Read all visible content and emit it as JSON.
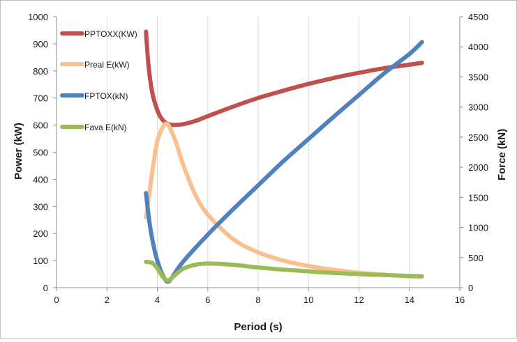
{
  "chart_data": {
    "type": "line",
    "title": "",
    "xlabel": "Period (s)",
    "ylabel": "Power (kW)",
    "y2label": "Force (kN)",
    "xlim": [
      0,
      16
    ],
    "ylim": [
      0,
      1000
    ],
    "y2lim": [
      0,
      4500
    ],
    "xticks": [
      0,
      2,
      4,
      6,
      8,
      10,
      12,
      14,
      16
    ],
    "yticks": [
      0,
      100,
      200,
      300,
      400,
      500,
      600,
      700,
      800,
      900,
      1000
    ],
    "y2ticks": [
      0,
      500,
      1000,
      1500,
      2000,
      2500,
      3000,
      3500,
      4000,
      4500
    ],
    "grid": "vertical",
    "legend_position": "top-left",
    "series": [
      {
        "name": "PPTOXX(KW)",
        "axis": "left",
        "color": "#c0504d",
        "points": [
          [
            3.55,
            945
          ],
          [
            3.65,
            820
          ],
          [
            3.8,
            720
          ],
          [
            4.0,
            655
          ],
          [
            4.2,
            620
          ],
          [
            4.5,
            602
          ],
          [
            5.0,
            603
          ],
          [
            5.5,
            615
          ],
          [
            6.0,
            633
          ],
          [
            7.0,
            668
          ],
          [
            8.0,
            700
          ],
          [
            9.0,
            727
          ],
          [
            10.0,
            752
          ],
          [
            11.0,
            774
          ],
          [
            12.0,
            793
          ],
          [
            13.0,
            810
          ],
          [
            14.0,
            823
          ],
          [
            14.5,
            830
          ]
        ]
      },
      {
        "name": "Preal E(kW)",
        "axis": "left",
        "color": "#fac090",
        "points": [
          [
            3.55,
            260
          ],
          [
            3.7,
            360
          ],
          [
            3.85,
            460
          ],
          [
            4.0,
            540
          ],
          [
            4.2,
            590
          ],
          [
            4.35,
            605
          ],
          [
            4.5,
            590
          ],
          [
            4.8,
            520
          ],
          [
            5.0,
            460
          ],
          [
            5.5,
            345
          ],
          [
            6.0,
            270
          ],
          [
            7.0,
            180
          ],
          [
            8.0,
            130
          ],
          [
            9.0,
            100
          ],
          [
            10.0,
            80
          ],
          [
            11.0,
            66
          ],
          [
            12.0,
            55
          ],
          [
            13.0,
            48
          ],
          [
            14.0,
            42
          ],
          [
            14.5,
            40
          ]
        ]
      },
      {
        "name": "FPTOX(kN)",
        "axis": "right",
        "color": "#4f81bd",
        "points": [
          [
            3.55,
            1570
          ],
          [
            3.7,
            1050
          ],
          [
            3.85,
            700
          ],
          [
            4.0,
            450
          ],
          [
            4.2,
            220
          ],
          [
            4.4,
            100
          ],
          [
            4.6,
            180
          ],
          [
            5.0,
            420
          ],
          [
            6.0,
            880
          ],
          [
            7.0,
            1300
          ],
          [
            8.0,
            1700
          ],
          [
            9.0,
            2100
          ],
          [
            10.0,
            2470
          ],
          [
            11.0,
            2840
          ],
          [
            12.0,
            3200
          ],
          [
            13.0,
            3560
          ],
          [
            14.0,
            3880
          ],
          [
            14.5,
            4080
          ]
        ]
      },
      {
        "name": "Fava E(kN)",
        "axis": "right",
        "color": "#9bbb59",
        "points": [
          [
            3.55,
            430
          ],
          [
            3.8,
            410
          ],
          [
            4.0,
            320
          ],
          [
            4.2,
            190
          ],
          [
            4.4,
            120
          ],
          [
            4.6,
            170
          ],
          [
            5.0,
            310
          ],
          [
            5.5,
            380
          ],
          [
            6.0,
            400
          ],
          [
            7.0,
            380
          ],
          [
            8.0,
            335
          ],
          [
            9.0,
            300
          ],
          [
            10.0,
            270
          ],
          [
            11.0,
            245
          ],
          [
            12.0,
            225
          ],
          [
            13.0,
            210
          ],
          [
            14.0,
            195
          ],
          [
            14.5,
            190
          ]
        ]
      }
    ]
  }
}
